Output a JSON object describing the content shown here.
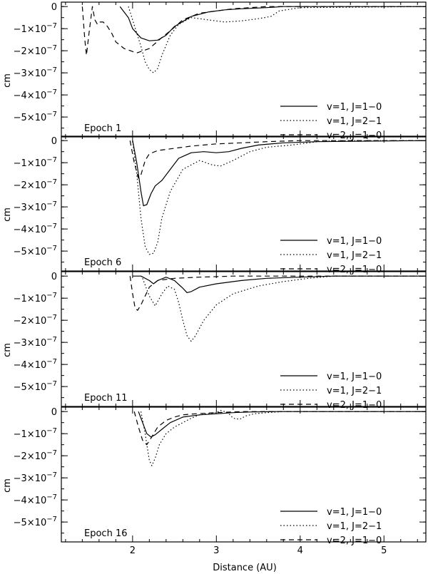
{
  "chart_data": {
    "type": "line",
    "xlabel": "Distance (AU)",
    "xlim": [
      1.15,
      5.5
    ],
    "x_ticks": [
      {
        "value": 2,
        "label": "2"
      },
      {
        "value": 3,
        "label": "3"
      },
      {
        "value": 4,
        "label": "4"
      },
      {
        "value": 5,
        "label": "5"
      }
    ],
    "x_minor_step": 0.2,
    "ylim": [
      -5.9e-07,
      2e-08
    ],
    "y_tick_values": [
      0,
      -1e-07,
      -2e-07,
      -3e-07,
      -4e-07,
      -5e-07
    ],
    "y_tick_mantissas": [
      "0",
      "−1",
      "−2",
      "−3",
      "−4",
      "−5"
    ],
    "y_tick_suffix": "×10",
    "y_tick_exponent": "−7",
    "y_minor_step": 5e-08,
    "legend_placement": "bottom-right",
    "panels": [
      {
        "label": "Epoch 1",
        "ylabel": "cm",
        "series": [
          {
            "name": "v=1, J=1−0",
            "style": "solid",
            "x": [
              1.85,
              1.95,
              2.0,
              2.1,
              2.2,
              2.3,
              2.4,
              2.5,
              2.7,
              2.9,
              3.1,
              3.3,
              3.6,
              3.8,
              5.5
            ],
            "y": [
              0,
              -5e-08,
              -1e-07,
              -1.42e-07,
              -1.55e-07,
              -1.52e-07,
              -1.3e-07,
              -9e-08,
              -4.5e-08,
              -2.5e-08,
              -1.5e-08,
              -1e-08,
              -5e-09,
              0,
              0
            ]
          },
          {
            "name": "v=1, J=2−1",
            "style": "dotted",
            "x": [
              1.95,
              2.0,
              2.05,
              2.1,
              2.15,
              2.2,
              2.25,
              2.3,
              2.35,
              2.45,
              2.55,
              2.7,
              2.9,
              3.1,
              3.3,
              3.5,
              3.65,
              3.75,
              4.0,
              5.5
            ],
            "y": [
              0,
              -6e-08,
              -1.2e-07,
              -1.8e-07,
              -2.5e-07,
              -2.85e-07,
              -3e-07,
              -2.8e-07,
              -2.2e-07,
              -1.3e-07,
              -8e-08,
              -5e-08,
              -6e-08,
              -7e-08,
              -6.5e-08,
              -5.5e-08,
              -4.5e-08,
              -2e-08,
              -5e-09,
              0
            ]
          },
          {
            "name": "v=2, J=1−0",
            "style": "dashed",
            "x": [
              1.4,
              1.43,
              1.45,
              1.48,
              1.52,
              1.55,
              1.58,
              1.6,
              1.65,
              1.7,
              1.75,
              1.8,
              1.9,
              2.05,
              2.2,
              2.35,
              2.45,
              2.6,
              2.8,
              3.0,
              3.2,
              3.4,
              3.6,
              5.5
            ],
            "y": [
              0,
              -1.5e-07,
              -2.2e-07,
              -1.2e-07,
              0,
              -6e-08,
              -8e-08,
              -7e-08,
              -7e-08,
              -9e-08,
              -1.2e-07,
              -1.6e-07,
              -1.9e-07,
              -2.1e-07,
              -1.9e-07,
              -1.4e-07,
              -1.1e-07,
              -6e-08,
              -3e-08,
              -2e-08,
              -1e-08,
              -5e-09,
              0,
              0
            ]
          }
        ]
      },
      {
        "label": "Epoch 6",
        "ylabel": "cm",
        "series": [
          {
            "name": "v=1, J=1−0",
            "style": "solid",
            "x": [
              2.0,
              2.05,
              2.1,
              2.13,
              2.17,
              2.22,
              2.27,
              2.35,
              2.45,
              2.55,
              2.7,
              2.85,
              3.0,
              3.15,
              3.3,
              3.5,
              3.8,
              4.2,
              5.5
            ],
            "y": [
              0,
              -1e-07,
              -2.3e-07,
              -2.95e-07,
              -2.9e-07,
              -2.4e-07,
              -2.05e-07,
              -1.8e-07,
              -1.3e-07,
              -8e-08,
              -5.5e-08,
              -5e-08,
              -5.5e-08,
              -5e-08,
              -3.5e-08,
              -2e-08,
              -1e-08,
              -5e-09,
              0
            ]
          },
          {
            "name": "v=1, J=2−1",
            "style": "dotted",
            "x": [
              2.0,
              2.05,
              2.1,
              2.15,
              2.2,
              2.25,
              2.3,
              2.35,
              2.45,
              2.6,
              2.8,
              2.95,
              3.05,
              3.2,
              3.4,
              3.6,
              3.9,
              4.1,
              4.3,
              5.5
            ],
            "y": [
              0,
              -1.5e-07,
              -3.5e-07,
              -4.8e-07,
              -5.15e-07,
              -5.1e-07,
              -4.6e-07,
              -3.5e-07,
              -2.3e-07,
              -1.3e-07,
              -9e-08,
              -1.1e-07,
              -1.15e-07,
              -9e-08,
              -5e-08,
              -3e-08,
              -2e-08,
              -1e-08,
              0,
              0
            ]
          },
          {
            "name": "v=2, J=1−0",
            "style": "dashed",
            "x": [
              1.97,
              2.02,
              2.07,
              2.1,
              2.15,
              2.2,
              2.3,
              2.5,
              2.7,
              3.0,
              3.3,
              3.6,
              4.0,
              5.5
            ],
            "y": [
              0,
              -1e-07,
              -1.7e-07,
              -1.55e-07,
              -9e-08,
              -6e-08,
              -4.5e-08,
              -3.5e-08,
              -2.5e-08,
              -1.5e-08,
              -1e-08,
              -5e-09,
              0,
              0
            ]
          }
        ]
      },
      {
        "label": "Epoch 11",
        "ylabel": "cm",
        "series": [
          {
            "name": "v=1, J=1−0",
            "style": "solid",
            "x": [
              2.0,
              2.1,
              2.2,
              2.25,
              2.3,
              2.4,
              2.5,
              2.6,
              2.65,
              2.7,
              2.8,
              3.0,
              3.3,
              3.6,
              4.0,
              4.4,
              5.5
            ],
            "y": [
              0,
              0,
              -2e-08,
              -3.5e-08,
              -2e-08,
              -5e-09,
              -2e-08,
              -5.5e-08,
              -7.5e-08,
              -7e-08,
              -5e-08,
              -3.5e-08,
              -2e-08,
              -1e-08,
              -5e-09,
              0,
              0
            ]
          },
          {
            "name": "v=1, J=2−1",
            "style": "dotted",
            "x": [
              2.12,
              2.2,
              2.27,
              2.35,
              2.42,
              2.5,
              2.55,
              2.6,
              2.65,
              2.7,
              2.75,
              2.85,
              3.0,
              3.2,
              3.5,
              3.8,
              4.1,
              4.4,
              5.5
            ],
            "y": [
              -1e-08,
              -9e-08,
              -1.35e-07,
              -8e-08,
              -4.5e-08,
              -6e-08,
              -1.2e-07,
              -2e-07,
              -2.7e-07,
              -2.95e-07,
              -2.7e-07,
              -2e-07,
              -1.3e-07,
              -8e-08,
              -4.5e-08,
              -2.5e-08,
              -1e-08,
              0,
              0
            ]
          },
          {
            "name": "v=2, J=1−0",
            "style": "dashed",
            "x": [
              1.97,
              2.0,
              2.03,
              2.06,
              2.1,
              2.15,
              2.2,
              2.3,
              2.5,
              2.8,
              3.2,
              5.5
            ],
            "y": [
              0,
              -8e-08,
              -1.45e-07,
              -1.55e-07,
              -1.3e-07,
              -9e-08,
              -5e-08,
              -2e-08,
              -1e-08,
              -5e-09,
              0,
              0
            ]
          }
        ]
      },
      {
        "label": "Epoch 16",
        "ylabel": "cm",
        "series": [
          {
            "name": "v=1, J=1−0",
            "style": "solid",
            "x": [
              2.07,
              2.12,
              2.17,
              2.22,
              2.27,
              2.35,
              2.45,
              2.6,
              2.8,
              3.0,
              3.2,
              3.4,
              3.7,
              5.5
            ],
            "y": [
              0,
              -5e-08,
              -1e-07,
              -1.15e-07,
              -1.05e-07,
              -8e-08,
              -5e-08,
              -2.5e-08,
              -1.5e-08,
              -1e-08,
              -5e-09,
              -2e-09,
              0,
              0
            ]
          },
          {
            "name": "v=1, J=2−1",
            "style": "dotted",
            "x": [
              2.1,
              2.15,
              2.2,
              2.23,
              2.27,
              2.32,
              2.4,
              2.5,
              2.6,
              2.7,
              2.8,
              2.9,
              3.0,
              3.05,
              3.1,
              3.15,
              3.2,
              3.28,
              3.35,
              3.45,
              3.6,
              3.8,
              5.5
            ],
            "y": [
              0,
              -1e-07,
              -2.2e-07,
              -2.45e-07,
              -2.1e-07,
              -1.5e-07,
              -1e-07,
              -7e-08,
              -5e-08,
              -3e-08,
              -1.5e-08,
              -1e-08,
              -5e-09,
              5e-09,
              0,
              -1e-08,
              -3e-08,
              -3.5e-08,
              -2e-08,
              -1e-08,
              -5e-09,
              0,
              0
            ]
          },
          {
            "name": "v=2, J=1−0",
            "style": "dashed",
            "x": [
              2.02,
              2.07,
              2.12,
              2.17,
              2.22,
              2.3,
              2.4,
              2.5,
              2.6,
              2.75,
              3.0,
              3.3,
              5.5
            ],
            "y": [
              0,
              -7e-08,
              -1.3e-07,
              -1.5e-07,
              -1.2e-07,
              -7e-08,
              -4e-08,
              -2.5e-08,
              -1.5e-08,
              -1e-08,
              -5e-09,
              0,
              0
            ]
          }
        ]
      }
    ]
  }
}
